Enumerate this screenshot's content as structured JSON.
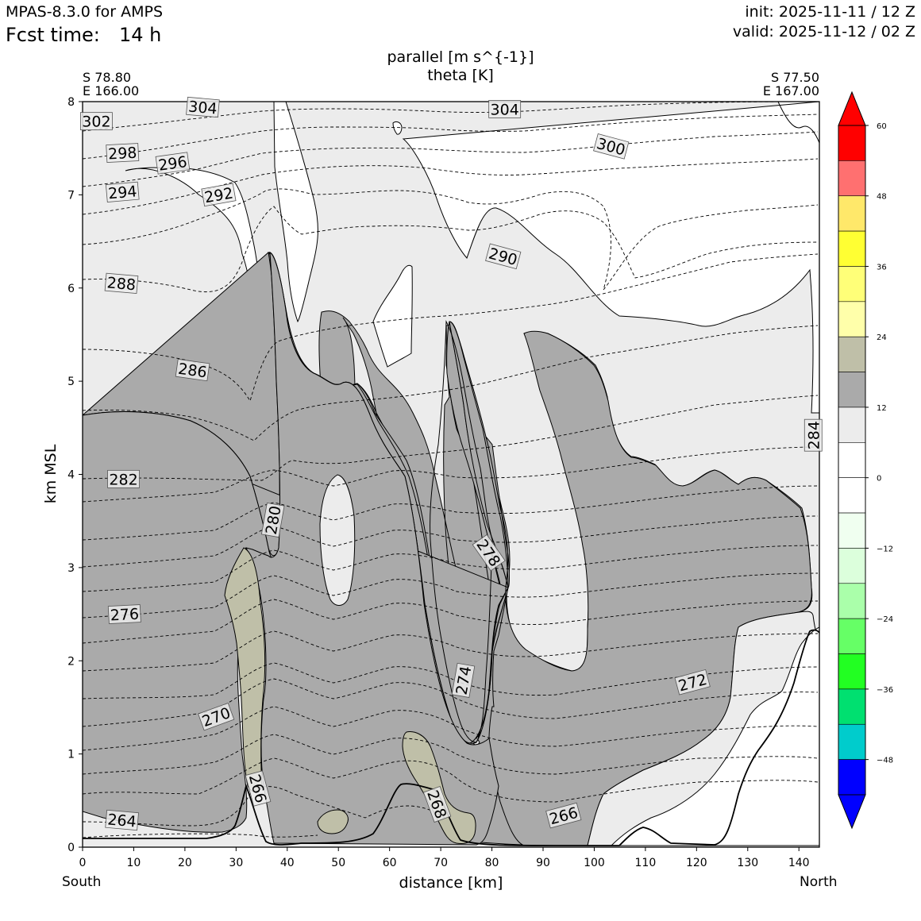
{
  "header": {
    "model": "MPAS-8.3.0 for AMPS",
    "fcst_label": "Fcst time:",
    "fcst_value": "14 h",
    "init": "init: 2025-11-11 / 12 Z",
    "valid": "valid: 2025-11-12 / 02 Z"
  },
  "chart_data": {
    "type": "contour",
    "title_line1": "parallel [m s^{-1}]",
    "title_line2": "theta [K]",
    "xlabel": "distance [km]",
    "ylabel": "km MSL",
    "xlim": [
      0,
      144
    ],
    "ylim": [
      0,
      8
    ],
    "x_ticks": [
      0,
      10,
      20,
      30,
      40,
      50,
      60,
      70,
      80,
      90,
      100,
      110,
      120,
      130,
      140
    ],
    "y_ticks": [
      0,
      1,
      2,
      3,
      4,
      5,
      6,
      7,
      8
    ],
    "left_end": {
      "lat": "S 78.80",
      "lon": "E 166.00",
      "dir": "South"
    },
    "right_end": {
      "lat": "S 77.50",
      "lon": "E 167.00",
      "dir": "North"
    },
    "theta_labels": [
      {
        "text": "302",
        "x": 2.7,
        "y": 7.79,
        "rot": 0
      },
      {
        "text": "304",
        "x": 23.5,
        "y": 7.94,
        "rot": 5
      },
      {
        "text": "304",
        "x": 82.5,
        "y": 7.92,
        "rot": 0
      },
      {
        "text": "298",
        "x": 7.8,
        "y": 7.45,
        "rot": -3
      },
      {
        "text": "296",
        "x": 17.6,
        "y": 7.34,
        "rot": -8
      },
      {
        "text": "300",
        "x": 103.3,
        "y": 7.52,
        "rot": 15
      },
      {
        "text": "294",
        "x": 7.8,
        "y": 7.03,
        "rot": -5
      },
      {
        "text": "292",
        "x": 26.6,
        "y": 7.0,
        "rot": -10
      },
      {
        "text": "290",
        "x": 82.2,
        "y": 6.34,
        "rot": 15
      },
      {
        "text": "288",
        "x": 7.6,
        "y": 6.05,
        "rot": 5
      },
      {
        "text": "286",
        "x": 21.5,
        "y": 5.12,
        "rot": 8
      },
      {
        "text": "284",
        "x": 142.8,
        "y": 4.42,
        "rot": -90
      },
      {
        "text": "282",
        "x": 8.0,
        "y": 3.95,
        "rot": 0
      },
      {
        "text": "280",
        "x": 37.2,
        "y": 3.51,
        "rot": -80
      },
      {
        "text": "278",
        "x": 79.4,
        "y": 3.16,
        "rot": 55
      },
      {
        "text": "276",
        "x": 8.2,
        "y": 2.5,
        "rot": -3
      },
      {
        "text": "274",
        "x": 74.4,
        "y": 1.79,
        "rot": -80
      },
      {
        "text": "272",
        "x": 119.2,
        "y": 1.77,
        "rot": -15
      },
      {
        "text": "270",
        "x": 26.1,
        "y": 1.4,
        "rot": -20
      },
      {
        "text": "266",
        "x": 34.3,
        "y": 0.63,
        "rot": 75
      },
      {
        "text": "268",
        "x": 69.3,
        "y": 0.46,
        "rot": 70
      },
      {
        "text": "266",
        "x": 94.0,
        "y": 0.34,
        "rot": -15
      },
      {
        "text": "264",
        "x": 7.7,
        "y": 0.29,
        "rot": 5
      }
    ],
    "colorbar": {
      "ticks": [
        {
          "value": 60,
          "label": "60"
        },
        {
          "value": 48,
          "label": "48"
        },
        {
          "value": 36,
          "label": "36"
        },
        {
          "value": 24,
          "label": "24"
        },
        {
          "value": 12,
          "label": "12"
        },
        {
          "value": 0,
          "label": "0"
        },
        {
          "value": -12,
          "label": "−12"
        },
        {
          "value": -24,
          "label": "−24"
        },
        {
          "value": -36,
          "label": "−36"
        },
        {
          "value": -48,
          "label": "−48"
        }
      ],
      "bins": [
        {
          "from": 54,
          "to": 60,
          "color": "#ff0000"
        },
        {
          "from": 48,
          "to": 54,
          "color": "#ff7070"
        },
        {
          "from": 42,
          "to": 48,
          "color": "#ffe86a"
        },
        {
          "from": 36,
          "to": 42,
          "color": "#ffff33"
        },
        {
          "from": 30,
          "to": 36,
          "color": "#ffff78"
        },
        {
          "from": 24,
          "to": 30,
          "color": "#ffffaa"
        },
        {
          "from": 18,
          "to": 24,
          "color": "#bfbfa8"
        },
        {
          "from": 12,
          "to": 18,
          "color": "#aaaaaa"
        },
        {
          "from": 6,
          "to": 12,
          "color": "#ececec"
        },
        {
          "from": 0,
          "to": 6,
          "color": "#ffffff"
        },
        {
          "from": -6,
          "to": 0,
          "color": "#ffffff"
        },
        {
          "from": -12,
          "to": -6,
          "color": "#f0fff0"
        },
        {
          "from": -18,
          "to": -12,
          "color": "#dcffdc"
        },
        {
          "from": -24,
          "to": -18,
          "color": "#aaffaa"
        },
        {
          "from": -30,
          "to": -24,
          "color": "#66ff66"
        },
        {
          "from": -36,
          "to": -30,
          "color": "#22ff22"
        },
        {
          "from": -42,
          "to": -36,
          "color": "#00e070"
        },
        {
          "from": -48,
          "to": -42,
          "color": "#00cccc"
        },
        {
          "from": -54,
          "to": -48,
          "color": "#0000ff"
        }
      ],
      "over_color": "#ff0000",
      "under_color": "#0000ff"
    }
  }
}
